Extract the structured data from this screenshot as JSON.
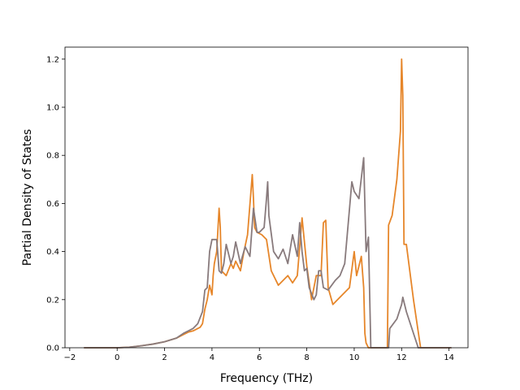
{
  "chart_data": {
    "type": "line",
    "xlabel": "Frequency (THz)",
    "ylabel": "Partial Density of States",
    "xlim": [
      -2.2,
      14.8
    ],
    "ylim": [
      0,
      1.25
    ],
    "xticks": [
      -2,
      0,
      2,
      4,
      6,
      8,
      10,
      12,
      14
    ],
    "xtick_labels": [
      "−2",
      "0",
      "2",
      "4",
      "6",
      "8",
      "10",
      "12",
      "14"
    ],
    "yticks": [
      0,
      0.2,
      0.4,
      0.6,
      0.8,
      1.0,
      1.2
    ],
    "ytick_labels": [
      "0.0",
      "0.2",
      "0.4",
      "0.6",
      "0.8",
      "1.0",
      "1.2"
    ],
    "grid": false,
    "series": [
      {
        "color": "#e6862a",
        "x": [
          -1.4,
          0,
          0.5,
          1,
          1.5,
          2,
          2.5,
          2.8,
          3,
          3.2,
          3.5,
          3.6,
          3.65,
          3.7,
          3.8,
          3.9,
          4,
          4.05,
          4.1,
          4.2,
          4.3,
          4.35,
          4.4,
          4.6,
          4.8,
          4.9,
          5,
          5.2,
          5.35,
          5.5,
          5.7,
          5.75,
          5.8,
          5.9,
          6.1,
          6.3,
          6.5,
          6.8,
          7,
          7.2,
          7.4,
          7.6,
          7.8,
          8,
          8.2,
          8.4,
          8.6,
          8.7,
          8.8,
          8.9,
          9.1,
          9.3,
          9.5,
          9.8,
          10,
          10.1,
          10.3,
          10.4,
          10.45,
          10.5,
          10.6,
          11.4,
          11.45,
          11.6,
          11.8,
          11.95,
          12,
          12.05,
          12.1,
          12.2,
          12.5,
          12.8,
          14.1
        ],
        "values": [
          0,
          0,
          0.002,
          0.008,
          0.015,
          0.025,
          0.04,
          0.055,
          0.065,
          0.07,
          0.085,
          0.1,
          0.13,
          0.16,
          0.2,
          0.26,
          0.22,
          0.3,
          0.35,
          0.4,
          0.58,
          0.5,
          0.32,
          0.3,
          0.35,
          0.33,
          0.36,
          0.32,
          0.4,
          0.47,
          0.72,
          0.62,
          0.5,
          0.48,
          0.47,
          0.45,
          0.32,
          0.26,
          0.28,
          0.3,
          0.27,
          0.3,
          0.54,
          0.34,
          0.2,
          0.3,
          0.3,
          0.52,
          0.53,
          0.25,
          0.18,
          0.2,
          0.22,
          0.25,
          0.4,
          0.3,
          0.38,
          0.25,
          0.06,
          0.02,
          0,
          0,
          0.51,
          0.55,
          0.7,
          0.9,
          1.2,
          1.05,
          0.43,
          0.43,
          0.2,
          0,
          0
        ]
      },
      {
        "color": "#887a7c",
        "x": [
          -1.4,
          0,
          0.5,
          1,
          1.5,
          2,
          2.5,
          2.8,
          3,
          3.2,
          3.4,
          3.6,
          3.7,
          3.8,
          3.9,
          4,
          4.2,
          4.3,
          4.4,
          4.5,
          4.6,
          4.8,
          4.9,
          5,
          5.2,
          5.4,
          5.6,
          5.75,
          5.9,
          6,
          6.2,
          6.3,
          6.35,
          6.4,
          6.6,
          6.8,
          7,
          7.2,
          7.4,
          7.6,
          7.7,
          7.8,
          7.9,
          8,
          8.1,
          8.3,
          8.4,
          8.5,
          8.6,
          8.7,
          8.9,
          9.2,
          9.4,
          9.6,
          9.9,
          10,
          10.2,
          10.4,
          10.5,
          10.6,
          10.7,
          11.45,
          11.5,
          11.8,
          12,
          12.05,
          12.2,
          12.5,
          12.7,
          14.1
        ],
        "values": [
          0,
          0,
          0.002,
          0.008,
          0.015,
          0.025,
          0.04,
          0.06,
          0.07,
          0.08,
          0.1,
          0.15,
          0.24,
          0.25,
          0.4,
          0.45,
          0.45,
          0.32,
          0.31,
          0.35,
          0.43,
          0.35,
          0.38,
          0.44,
          0.35,
          0.42,
          0.38,
          0.58,
          0.48,
          0.48,
          0.5,
          0.62,
          0.69,
          0.55,
          0.4,
          0.37,
          0.41,
          0.35,
          0.47,
          0.38,
          0.52,
          0.4,
          0.32,
          0.33,
          0.25,
          0.2,
          0.22,
          0.32,
          0.32,
          0.25,
          0.24,
          0.28,
          0.3,
          0.35,
          0.69,
          0.65,
          0.62,
          0.79,
          0.4,
          0.46,
          0,
          0,
          0.08,
          0.12,
          0.18,
          0.21,
          0.15,
          0.06,
          0,
          0
        ]
      }
    ]
  }
}
